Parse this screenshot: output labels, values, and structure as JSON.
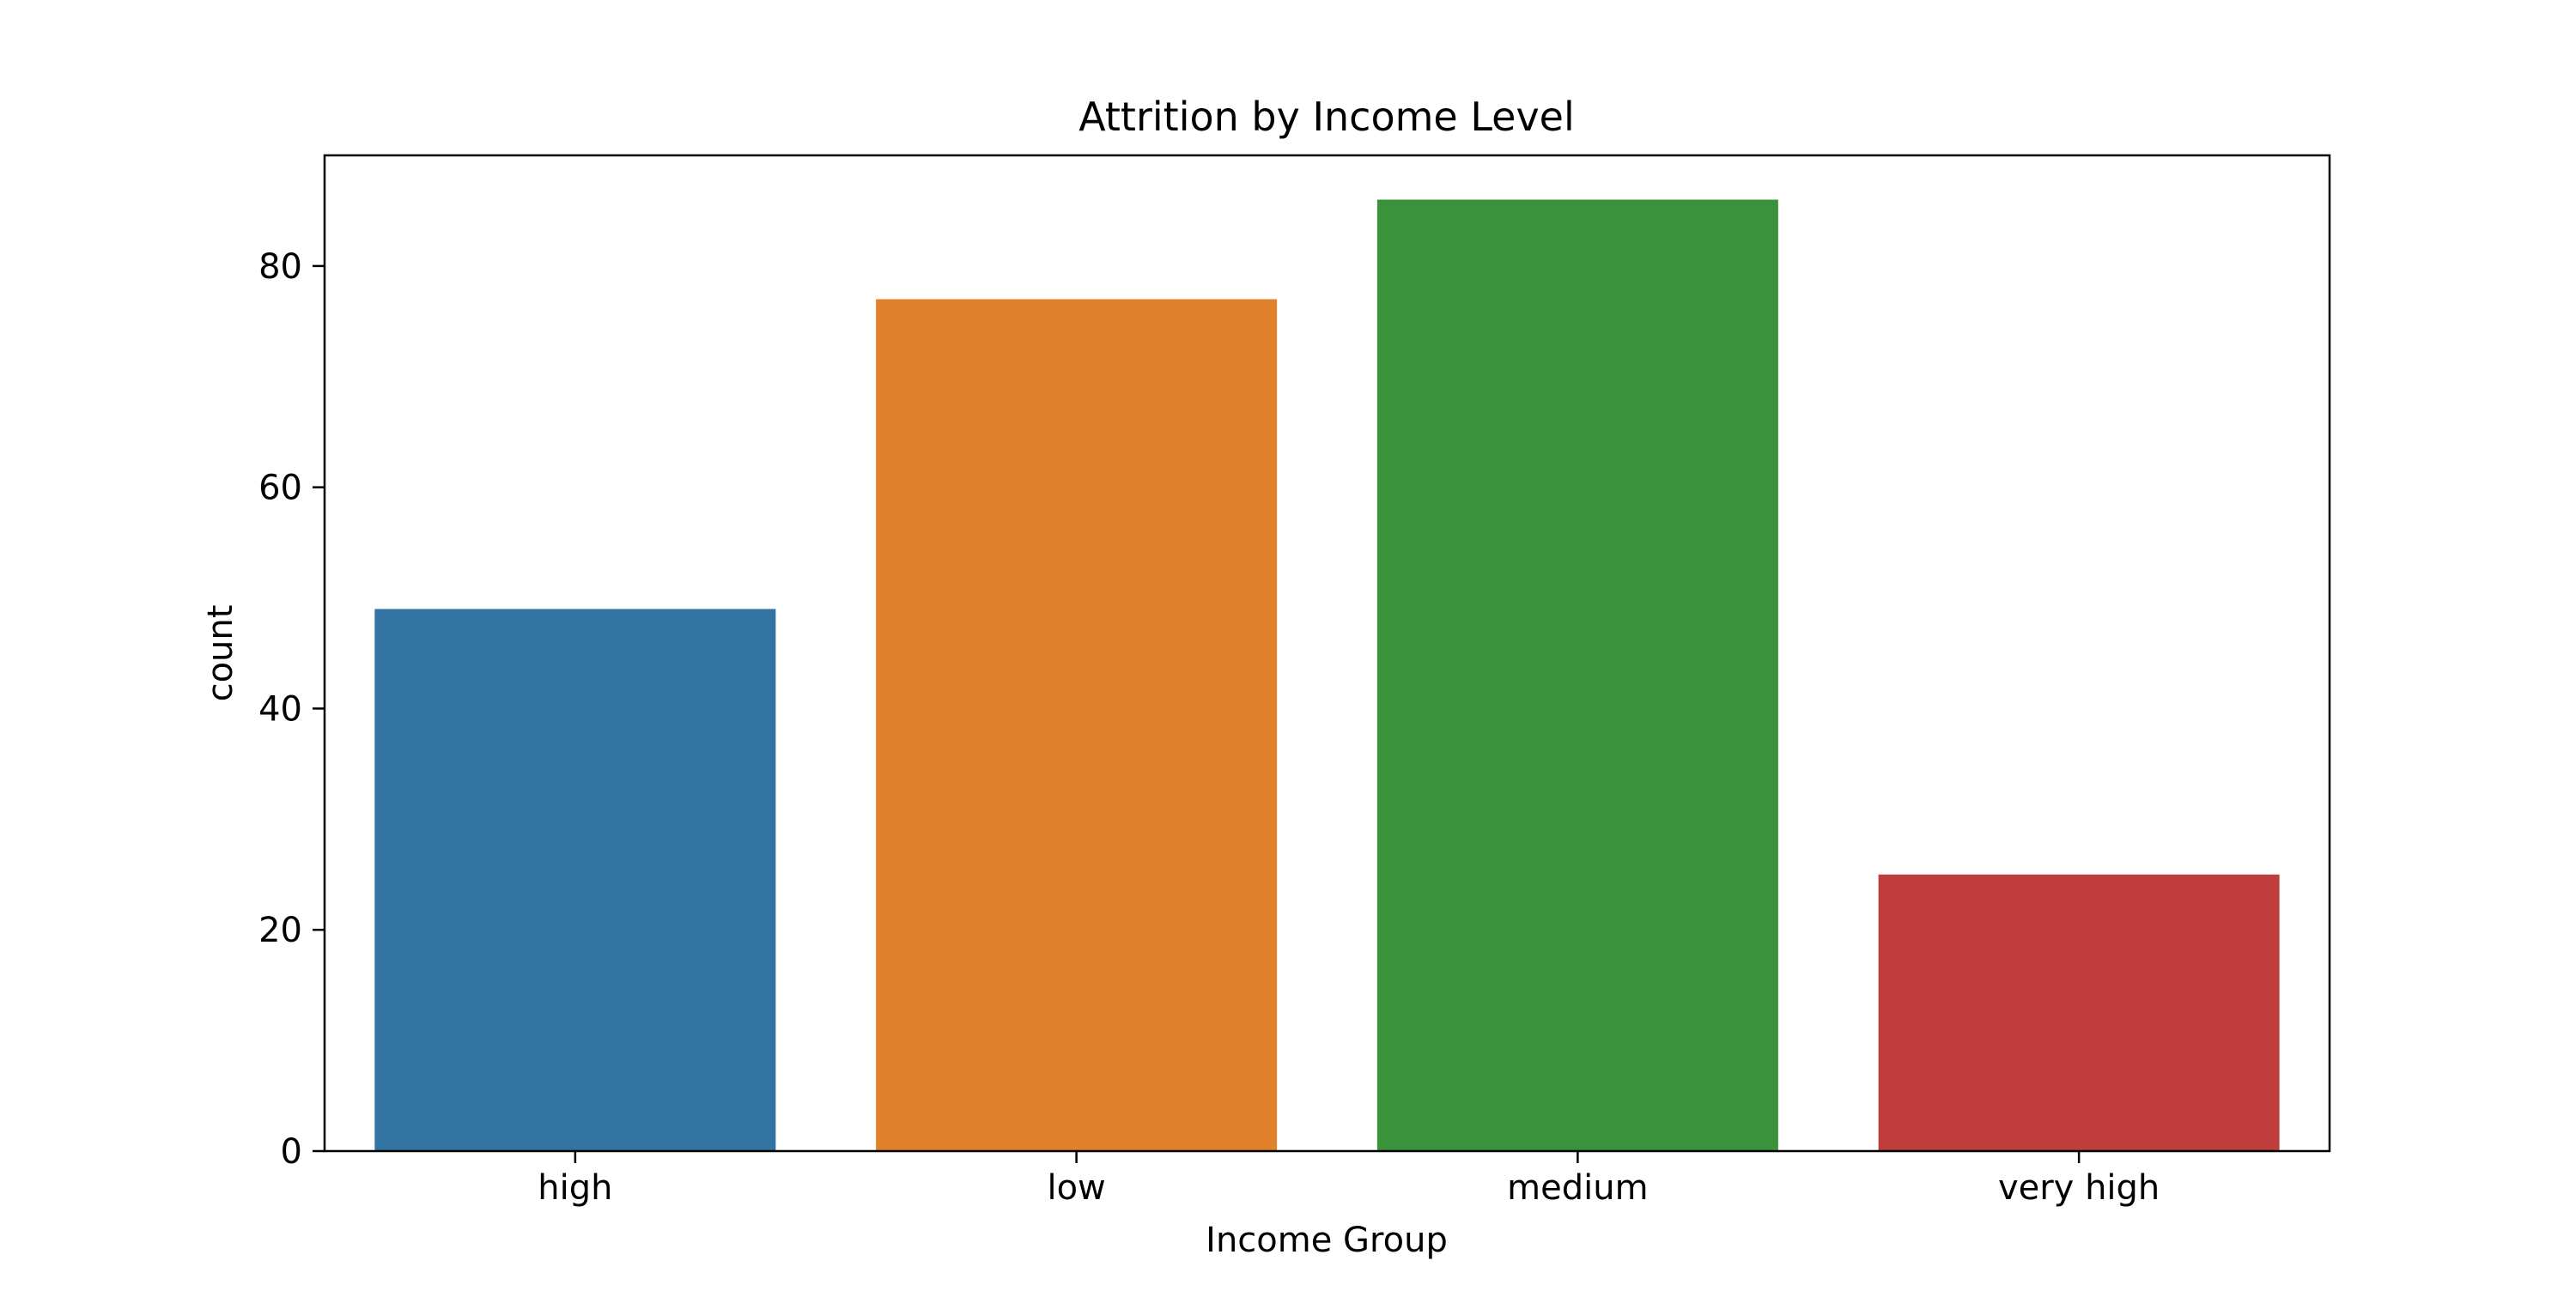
{
  "chart_data": {
    "type": "bar",
    "title": "Attrition by Income Level",
    "xlabel": "Income Group",
    "ylabel": "count",
    "categories": [
      "high",
      "low",
      "medium",
      "very high"
    ],
    "values": [
      49,
      77,
      86,
      25
    ],
    "colors": [
      "#3274a1",
      "#e1812c",
      "#3a923a",
      "#c03d3e"
    ],
    "ylim": [
      0,
      90
    ],
    "yticks": [
      0,
      20,
      40,
      60,
      80
    ],
    "grid": false,
    "legend": "none"
  }
}
